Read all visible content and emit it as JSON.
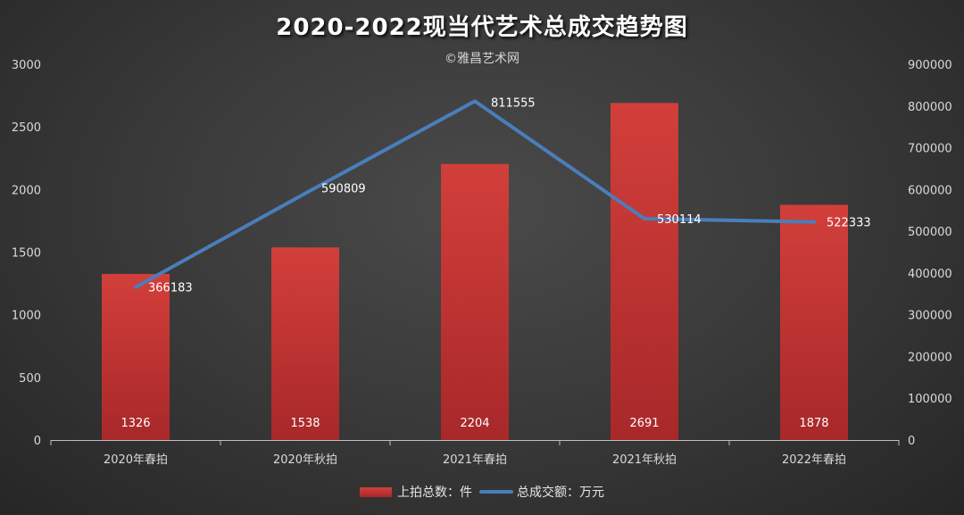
{
  "title": "2020-2022现当代艺术总成交趋势图",
  "watermark": "©雅昌艺术网",
  "colors": {
    "bar_top": "#d23f3a",
    "bar_bottom": "#a8282a",
    "line": "#4a7ebb",
    "axis": "#bfbfbf",
    "text": "#d9d9d9"
  },
  "legend": {
    "bar_series": "上拍总数：件",
    "line_series": "总成交额：万元"
  },
  "chart_data": {
    "type": "bar",
    "categories": [
      "2020年春拍",
      "2020年秋拍",
      "2021年春拍",
      "2021年秋拍",
      "2022年春拍"
    ],
    "series": [
      {
        "name": "上拍总数：件",
        "type": "bar",
        "axis": "left",
        "values": [
          1326,
          1538,
          2204,
          2691,
          1878
        ]
      },
      {
        "name": "总成交额：万元",
        "type": "line",
        "axis": "right",
        "values": [
          366183,
          590809,
          811555,
          530114,
          522333
        ]
      }
    ],
    "y_left": {
      "ylim": [
        0,
        3000
      ],
      "ticks": [
        "0",
        "500",
        "1000",
        "1500",
        "2000",
        "2500",
        "3000"
      ]
    },
    "y_right": {
      "ylim": [
        0,
        900000
      ],
      "ticks": [
        "0",
        "100000",
        "200000",
        "300000",
        "400000",
        "500000",
        "600000",
        "700000",
        "800000",
        "900000"
      ]
    },
    "grid": false,
    "legend_position": "bottom"
  }
}
